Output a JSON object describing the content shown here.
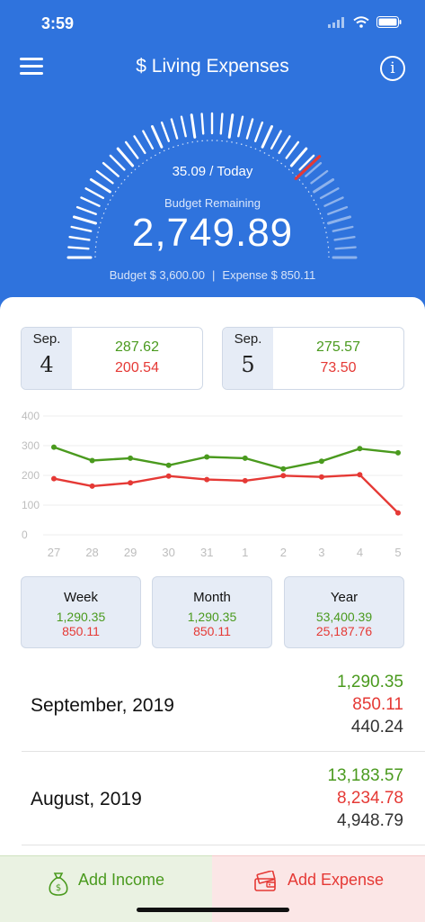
{
  "status": {
    "time": "3:59"
  },
  "header": {
    "title": "$ Living Expenses",
    "info_glyph": "i",
    "today": "35.09 / Today",
    "remaining_label": "Budget Remaining",
    "remaining_value": "2,749.89",
    "budget_text": "Budget $ 3,600.00",
    "separator": "|",
    "expense_text": "Expense $ 850.11",
    "gauge_fraction_spent": 0.24
  },
  "days": [
    {
      "month": "Sep.",
      "day": "4",
      "income": "287.62",
      "expense": "200.54"
    },
    {
      "month": "Sep.",
      "day": "5",
      "income": "275.57",
      "expense": "73.50"
    }
  ],
  "chart_data": {
    "type": "line",
    "x": [
      "27",
      "28",
      "29",
      "30",
      "31",
      "1",
      "2",
      "3",
      "4",
      "5"
    ],
    "yticks": [
      "400",
      "300",
      "200",
      "100",
      "0"
    ],
    "ylim": [
      0,
      400
    ],
    "grid": true,
    "series": [
      {
        "values": [
          295,
          250,
          258,
          234,
          262,
          258,
          222,
          248,
          290,
          276
        ],
        "color": "#4a9a1e"
      },
      {
        "values": [
          189,
          164,
          175,
          198,
          186,
          182,
          199,
          195,
          202,
          74
        ],
        "color": "#e53935"
      }
    ]
  },
  "periods": [
    {
      "title": "Week",
      "income": "1,290.35",
      "expense": "850.11"
    },
    {
      "title": "Month",
      "income": "1,290.35",
      "expense": "850.11"
    },
    {
      "title": "Year",
      "income": "53,400.39",
      "expense": "25,187.76"
    }
  ],
  "months": [
    {
      "name": "September, 2019",
      "income": "1,290.35",
      "expense": "850.11",
      "balance": "440.24"
    },
    {
      "name": "August, 2019",
      "income": "13,183.57",
      "expense": "8,234.78",
      "balance": "4,948.79"
    }
  ],
  "buttons": {
    "add_income": "Add Income",
    "add_expense": "Add Expense"
  },
  "colors": {
    "header": "#2f73dd",
    "income": "#4a9a1e",
    "expense": "#e53935"
  }
}
